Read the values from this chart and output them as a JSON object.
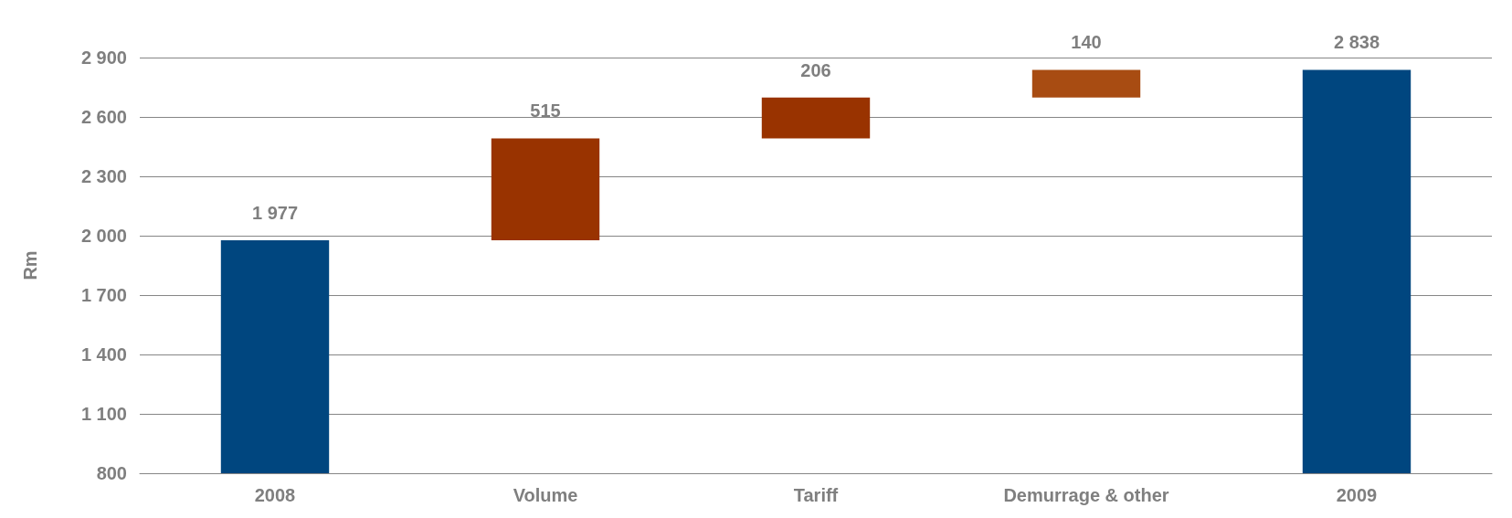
{
  "chart_data": {
    "type": "bar",
    "ylabel": "Rm",
    "categories": [
      "2008",
      "Volume",
      "Tariff",
      "Demurrage & other",
      "2009"
    ],
    "values": [
      1977,
      515,
      206,
      140,
      2838
    ],
    "base": [
      0,
      1977,
      2492,
      2698,
      0
    ],
    "value_labels": [
      "1 977",
      "515",
      "206",
      "140",
      "2 838"
    ],
    "colors": [
      "#00467f",
      "#993300",
      "#993300",
      "#a84c12",
      "#00467f"
    ],
    "ylim": [
      800,
      2900
    ],
    "yticks": [
      {
        "value": 800,
        "label": "800"
      },
      {
        "value": 1100,
        "label": "1 100"
      },
      {
        "value": 1400,
        "label": "1 400"
      },
      {
        "value": 1700,
        "label": "1 700"
      },
      {
        "value": 2000,
        "label": "2 000"
      },
      {
        "value": 2300,
        "label": "2 300"
      },
      {
        "value": 2600,
        "label": "2 600"
      },
      {
        "value": 2900,
        "label": "2 900"
      }
    ],
    "grid": "y"
  }
}
